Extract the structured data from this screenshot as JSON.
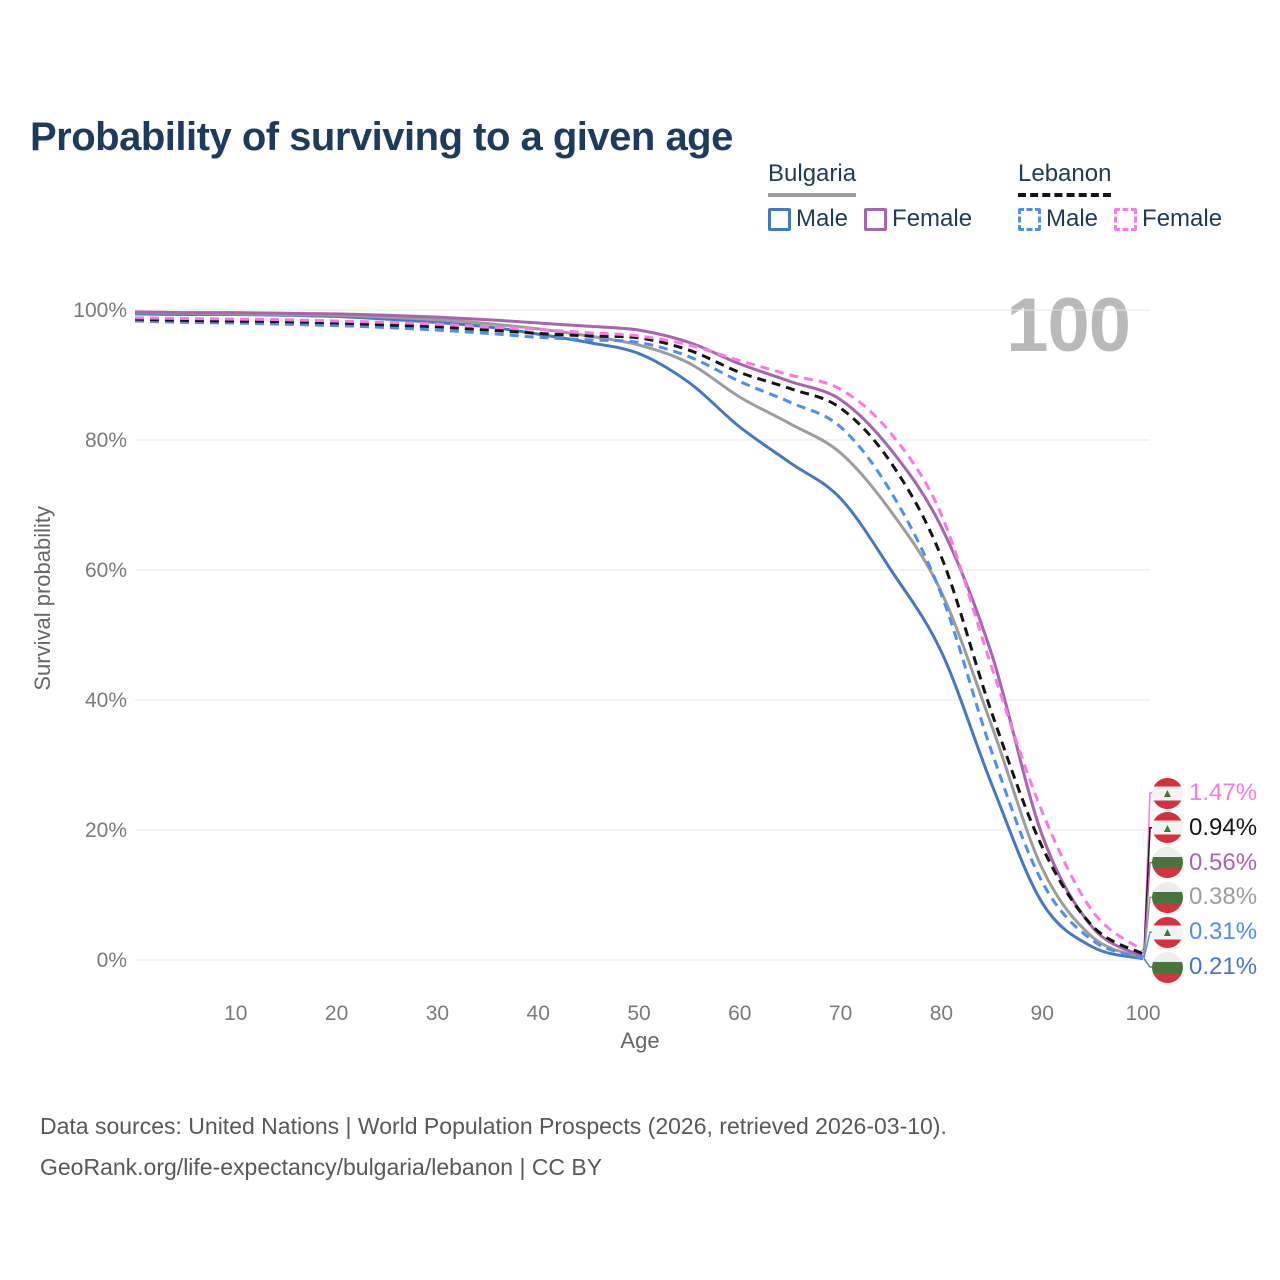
{
  "title": "Probability of surviving to a given age",
  "legend": {
    "groups": [
      {
        "title": "Bulgaria",
        "line_style": "solid",
        "line_color": "#9c9c9c",
        "items": [
          {
            "label": "Male",
            "color": "#4678c0",
            "style": "solid"
          },
          {
            "label": "Female",
            "color": "#a765ad",
            "style": "solid"
          }
        ]
      },
      {
        "title": "Lebanon",
        "line_style": "dashed",
        "line_color": "#151515",
        "items": [
          {
            "label": "Male",
            "color": "#4f8df3",
            "style": "dashed"
          },
          {
            "label": "Female",
            "color": "#f97ae3",
            "style": "dashed"
          }
        ]
      }
    ]
  },
  "chart_data": {
    "type": "line",
    "title": "Probability of surviving to a given age",
    "xlabel": "Age",
    "ylabel": "Survival probability",
    "xlim": [
      0,
      100
    ],
    "ylim": [
      0,
      100
    ],
    "grid": "horizontal",
    "age_indicator": "100",
    "xticks": [
      10,
      20,
      30,
      40,
      50,
      60,
      70,
      80,
      90,
      100
    ],
    "yticks": [
      {
        "value": 0,
        "label": "0%"
      },
      {
        "value": 20,
        "label": "20%"
      },
      {
        "value": 40,
        "label": "40%"
      },
      {
        "value": 60,
        "label": "60%"
      },
      {
        "value": 80,
        "label": "80%"
      },
      {
        "value": 100,
        "label": "100%"
      }
    ],
    "x": [
      0,
      5,
      10,
      15,
      20,
      25,
      30,
      35,
      40,
      45,
      50,
      55,
      60,
      65,
      70,
      75,
      80,
      85,
      90,
      95,
      100
    ],
    "series": [
      {
        "name": "Bulgaria Male",
        "country": "Bulgaria",
        "sex": "Male",
        "color": "#4678c0",
        "dash": "solid",
        "flag": "bulgaria",
        "end_label": "0.21%",
        "values": [
          99.4,
          99.3,
          99.3,
          99.2,
          99.0,
          98.6,
          98.1,
          97.4,
          96.3,
          95.0,
          93.3,
          88.8,
          82.0,
          76.5,
          71.0,
          60.0,
          47.4,
          27.0,
          8.8,
          2.0,
          0.21
        ]
      },
      {
        "name": "Bulgaria",
        "country": "Bulgaria",
        "sex": "Both",
        "color": "#9c9c9c",
        "dash": "solid",
        "flag": "bulgaria",
        "end_label": "0.38%",
        "values": [
          99.6,
          99.5,
          99.4,
          99.3,
          99.2,
          98.9,
          98.5,
          97.9,
          97.1,
          96.0,
          94.6,
          91.8,
          86.6,
          82.5,
          78.0,
          69.0,
          56.6,
          36.0,
          14.1,
          3.5,
          0.38
        ]
      },
      {
        "name": "Bulgaria Female",
        "country": "Bulgaria",
        "sex": "Female",
        "color": "#a765ad",
        "dash": "solid",
        "flag": "bulgaria",
        "end_label": "0.56%",
        "values": [
          99.7,
          99.6,
          99.6,
          99.5,
          99.4,
          99.2,
          98.9,
          98.5,
          98.0,
          97.5,
          96.9,
          95.0,
          91.7,
          89.0,
          86.2,
          78.5,
          66.6,
          47.0,
          19.2,
          5.0,
          0.56
        ]
      },
      {
        "name": "Lebanon Male",
        "country": "Lebanon",
        "sex": "Male",
        "color": "#4f8df3",
        "dash": "dashed",
        "flag": "lebanon",
        "end_label": "0.31%",
        "values": [
          98.3,
          98.1,
          98.0,
          97.8,
          97.6,
          97.3,
          96.9,
          96.4,
          95.8,
          95.4,
          95.0,
          92.8,
          89.0,
          85.8,
          82.0,
          72.0,
          56.2,
          32.0,
          12.0,
          3.0,
          0.31
        ]
      },
      {
        "name": "Lebanon",
        "country": "Lebanon",
        "sex": "Both",
        "color": "#151515",
        "dash": "dashed",
        "flag": "lebanon",
        "end_label": "0.94%",
        "values": [
          98.6,
          98.4,
          98.3,
          98.2,
          98.0,
          97.7,
          97.4,
          96.9,
          96.4,
          96.0,
          95.7,
          93.8,
          90.4,
          87.9,
          84.9,
          76.5,
          62.0,
          38.0,
          17.4,
          5.2,
          0.94
        ]
      },
      {
        "name": "Lebanon Female",
        "country": "Lebanon",
        "sex": "Female",
        "color": "#f97ae3",
        "dash": "dashed",
        "flag": "lebanon",
        "end_label": "1.47%",
        "values": [
          98.8,
          98.7,
          98.6,
          98.5,
          98.3,
          98.1,
          97.8,
          97.4,
          97.0,
          96.5,
          96.0,
          94.6,
          92.2,
          90.0,
          87.8,
          81.0,
          68.5,
          45.0,
          22.8,
          7.5,
          1.47
        ]
      }
    ],
    "end_labels_top_to_bottom": [
      "1.47%",
      "0.94%",
      "0.56%",
      "0.38%",
      "0.31%",
      "0.21%"
    ],
    "legend_position": "top-right"
  },
  "footer": {
    "line1": "Data sources: United Nations | World Population Prospects (2026, retrieved 2026-03-10).",
    "line2": "GeoRank.org/life-expectancy/bulgaria/lebanon | CC BY"
  }
}
